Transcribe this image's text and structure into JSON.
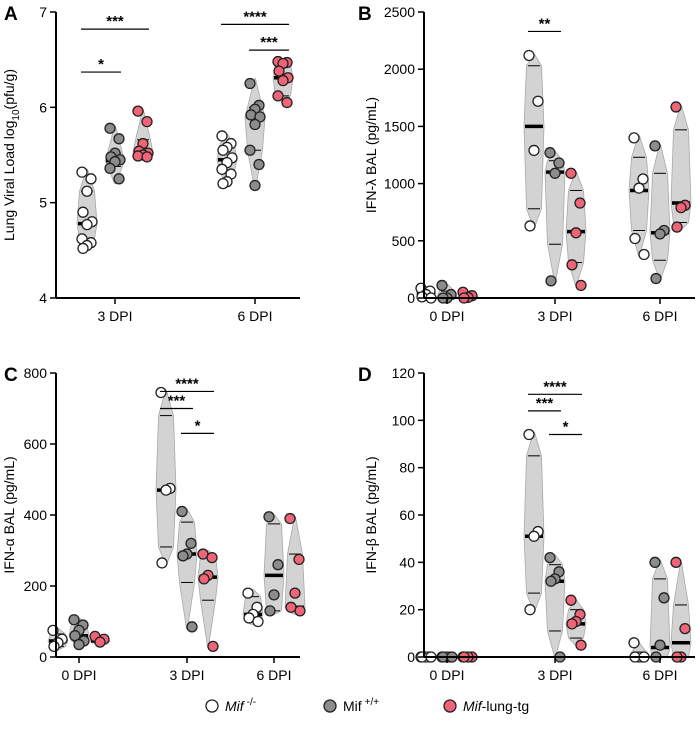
{
  "colors": {
    "mif_ko": "#ffffff",
    "mif_wt": "#8c8c8c",
    "mif_tg": "#f06478",
    "violin": "#d3d3d3"
  },
  "legend": [
    {
      "key": "mif_ko",
      "label": "Mif",
      "sup": "-/-",
      "italic": true
    },
    {
      "key": "mif_wt",
      "label": "Mif",
      "sup": "+/+",
      "italic": false
    },
    {
      "key": "mif_tg",
      "label": "Mif",
      "suffix": "-lung-tg",
      "italic": true
    }
  ],
  "chart_data": [
    {
      "panel": "A",
      "type": "scatter",
      "ylabel": "Lung Viral Load log",
      "ylabel_sub": "10",
      "ylabel_unit": "(pfu/g)",
      "ylim": [
        4,
        7
      ],
      "yticks": [
        4,
        5,
        6,
        7
      ],
      "categories": [
        "3 DPI",
        "6 DPI"
      ],
      "series": [
        {
          "key": "mif_ko",
          "data": [
            {
              "median": 4.78,
              "q1": 4.62,
              "q3": 5.12,
              "min": 4.5,
              "max": 5.35,
              "points": [
                5.32,
                5.25,
                5.12,
                4.9,
                4.8,
                4.77,
                4.62,
                4.58,
                4.55,
                4.52
              ]
            },
            {
              "median": 5.45,
              "q1": 5.33,
              "q3": 5.6,
              "min": 5.18,
              "max": 5.72,
              "points": [
                5.7,
                5.62,
                5.58,
                5.55,
                5.47,
                5.42,
                5.35,
                5.3,
                5.22,
                5.2
              ]
            }
          ]
        },
        {
          "key": "mif_wt",
          "data": [
            {
              "median": 5.44,
              "q1": 5.38,
              "q3": 5.52,
              "min": 5.2,
              "max": 5.8,
              "points": [
                5.78,
                5.67,
                5.52,
                5.48,
                5.45,
                5.43,
                5.36,
                5.25
              ]
            },
            {
              "median": 5.9,
              "q1": 5.55,
              "q3": 6.0,
              "min": 5.15,
              "max": 6.3,
              "points": [
                6.25,
                6.02,
                5.98,
                5.92,
                5.9,
                5.82,
                5.55,
                5.4,
                5.18
              ]
            }
          ]
        },
        {
          "key": "mif_tg",
          "data": [
            {
              "median": 5.52,
              "q1": 5.5,
              "q3": 5.66,
              "min": 5.47,
              "max": 5.97,
              "points": [
                5.96,
                5.85,
                5.62,
                5.54,
                5.52,
                5.5,
                5.49,
                5.48
              ]
            },
            {
              "median": 6.31,
              "q1": 6.12,
              "q3": 6.45,
              "min": 6.05,
              "max": 6.5,
              "points": [
                6.48,
                6.47,
                6.46,
                6.38,
                6.31,
                6.28,
                6.12,
                6.05
              ]
            }
          ]
        }
      ],
      "significance": [
        {
          "cat": 0,
          "from": 0,
          "to": 1,
          "y": 6.37,
          "label": "*"
        },
        {
          "cat": 0,
          "from": 0,
          "to": 2,
          "y": 6.82,
          "label": "***"
        },
        {
          "cat": 1,
          "from": 1,
          "to": 2,
          "y": 6.6,
          "label": "***"
        },
        {
          "cat": 1,
          "from": 0,
          "to": 2,
          "y": 6.87,
          "label": "****"
        }
      ]
    },
    {
      "panel": "B",
      "type": "scatter",
      "ylabel": "IFN-λ BAL (pg/mL)",
      "ylim": [
        0,
        2500
      ],
      "yticks": [
        0,
        500,
        1000,
        1500,
        2000,
        2500
      ],
      "categories": [
        "0 DPI",
        "3 DPI",
        "6 DPI"
      ],
      "series": [
        {
          "key": "mif_ko",
          "data": [
            {
              "median": 40,
              "q1": 15,
              "q3": 65,
              "min": 0,
              "max": 90,
              "points": [
                85,
                60,
                30,
                10,
                0
              ]
            },
            {
              "median": 1500,
              "q1": 780,
              "q3": 2030,
              "min": 620,
              "max": 2130,
              "points": [
                2120,
                1720,
                1290,
                630
              ]
            },
            {
              "median": 940,
              "q1": 590,
              "q3": 1230,
              "min": 370,
              "max": 1420,
              "points": [
                1400,
                1040,
                960,
                520,
                380
              ]
            }
          ]
        },
        {
          "key": "mif_wt",
          "data": [
            {
              "median": 10,
              "q1": 0,
              "q3": 60,
              "min": 0,
              "max": 120,
              "points": [
                110,
                30,
                0,
                0
              ]
            },
            {
              "median": 1100,
              "q1": 470,
              "q3": 1200,
              "min": 140,
              "max": 1280,
              "points": [
                1270,
                1180,
                1090,
                150
              ]
            },
            {
              "median": 570,
              "q1": 330,
              "q3": 1090,
              "min": 160,
              "max": 1340,
              "points": [
                1330,
                590,
                560,
                170
              ]
            }
          ]
        },
        {
          "key": "mif_tg",
          "data": [
            {
              "median": 10,
              "q1": 0,
              "q3": 30,
              "min": 0,
              "max": 60,
              "points": [
                50,
                20,
                5,
                0
              ]
            },
            {
              "median": 580,
              "q1": 310,
              "q3": 940,
              "min": 110,
              "max": 1100,
              "points": [
                1090,
                830,
                570,
                290,
                110
              ]
            },
            {
              "median": 830,
              "q1": 660,
              "q3": 1470,
              "min": 600,
              "max": 1680,
              "points": [
                1670,
                810,
                790,
                620
              ]
            }
          ]
        }
      ],
      "significance": [
        {
          "cat": 1,
          "from": 0,
          "to": 1,
          "y": 2330,
          "label": "**"
        }
      ]
    },
    {
      "panel": "C",
      "type": "scatter",
      "ylabel": "IFN-α BAL (pg/mL)",
      "ylim": [
        0,
        800
      ],
      "yticks": [
        0,
        200,
        400,
        600,
        800
      ],
      "categories": [
        "0 DPI",
        "3 DPI",
        "6 DPI"
      ],
      "series": [
        {
          "key": "mif_ko",
          "data": [
            {
              "median": 45,
              "q1": 30,
              "q3": 65,
              "min": 20,
              "max": 80,
              "points": [
                75,
                50,
                40,
                30
              ]
            },
            {
              "median": 470,
              "q1": 310,
              "q3": 680,
              "min": 260,
              "max": 750,
              "points": [
                745,
                475,
                470,
                265
              ]
            },
            {
              "median": 120,
              "q1": 100,
              "q3": 170,
              "min": 90,
              "max": 190,
              "points": [
                180,
                140,
                120,
                110,
                100
              ]
            }
          ]
        },
        {
          "key": "mif_wt",
          "data": [
            {
              "median": 60,
              "q1": 45,
              "q3": 95,
              "min": 30,
              "max": 110,
              "points": [
                105,
                90,
                75,
                60,
                45,
                35
              ]
            },
            {
              "median": 290,
              "q1": 210,
              "q3": 380,
              "min": 80,
              "max": 415,
              "points": [
                410,
                320,
                290,
                285,
                85
              ]
            },
            {
              "median": 230,
              "q1": 130,
              "q3": 375,
              "min": 120,
              "max": 400,
              "points": [
                395,
                260,
                175,
                130
              ]
            }
          ]
        },
        {
          "key": "mif_tg",
          "data": [
            {
              "median": 45,
              "q1": 40,
              "q3": 55,
              "min": 35,
              "max": 60,
              "points": [
                58,
                50,
                42
              ]
            },
            {
              "median": 225,
              "q1": 160,
              "q3": 285,
              "min": 30,
              "max": 300,
              "points": [
                290,
                280,
                230,
                220,
                30
              ]
            },
            {
              "median": 140,
              "q1": 130,
              "q3": 290,
              "min": 120,
              "max": 395,
              "points": [
                390,
                275,
                180,
                140,
                130
              ]
            }
          ]
        }
      ],
      "significance": [
        {
          "cat": 1,
          "from": 0,
          "to": 1,
          "y": 700,
          "label": "***"
        },
        {
          "cat": 1,
          "from": 0,
          "to": 2,
          "y": 748,
          "label": "****"
        },
        {
          "cat": 1,
          "from": 1,
          "to": 2,
          "y": 630,
          "label": "*"
        }
      ]
    },
    {
      "panel": "D",
      "type": "scatter",
      "ylabel": "IFN-β BAL (pg/mL)",
      "ylim": [
        0,
        120
      ],
      "yticks": [
        0,
        20,
        40,
        60,
        80,
        100,
        120
      ],
      "categories": [
        "0 DPI",
        "3 DPI",
        "6 DPI"
      ],
      "series": [
        {
          "key": "mif_ko",
          "data": [
            {
              "median": 0,
              "q1": 0,
              "q3": 0.4,
              "min": 0,
              "max": 0.8,
              "points": [
                0,
                0,
                0,
                0,
                0
              ]
            },
            {
              "median": 51,
              "q1": 27,
              "q3": 85,
              "min": 19,
              "max": 95,
              "points": [
                94,
                53,
                51,
                20
              ]
            },
            {
              "median": 0,
              "q1": 0,
              "q3": 2,
              "min": 0,
              "max": 6,
              "points": [
                6,
                0,
                0,
                0,
                0
              ]
            }
          ]
        },
        {
          "key": "mif_wt",
          "data": [
            {
              "median": 0,
              "q1": 0,
              "q3": 0.4,
              "min": 0,
              "max": 0.8,
              "points": [
                0,
                0,
                0,
                0,
                0
              ]
            },
            {
              "median": 32,
              "q1": 11,
              "q3": 39,
              "min": 0,
              "max": 43,
              "points": [
                42,
                36,
                33,
                32,
                0
              ]
            },
            {
              "median": 4,
              "q1": 0,
              "q3": 33,
              "min": 0,
              "max": 41,
              "points": [
                40,
                25,
                5,
                0
              ]
            }
          ]
        },
        {
          "key": "mif_tg",
          "data": [
            {
              "median": 0,
              "q1": 0,
              "q3": 0.3,
              "min": 0,
              "max": 0.6,
              "points": [
                0,
                0,
                0,
                0
              ]
            },
            {
              "median": 14,
              "q1": 8,
              "q3": 20,
              "min": 5,
              "max": 24,
              "points": [
                24,
                18,
                15,
                14,
                5
              ]
            },
            {
              "median": 6,
              "q1": 0,
              "q3": 22,
              "min": 0,
              "max": 40,
              "points": [
                40,
                12,
                0,
                0
              ]
            }
          ]
        }
      ],
      "significance": [
        {
          "cat": 1,
          "from": 0,
          "to": 1,
          "y": 104,
          "label": "***"
        },
        {
          "cat": 1,
          "from": 0,
          "to": 2,
          "y": 111,
          "label": "****"
        },
        {
          "cat": 1,
          "from": 1,
          "to": 2,
          "y": 94,
          "label": "*"
        }
      ]
    }
  ]
}
